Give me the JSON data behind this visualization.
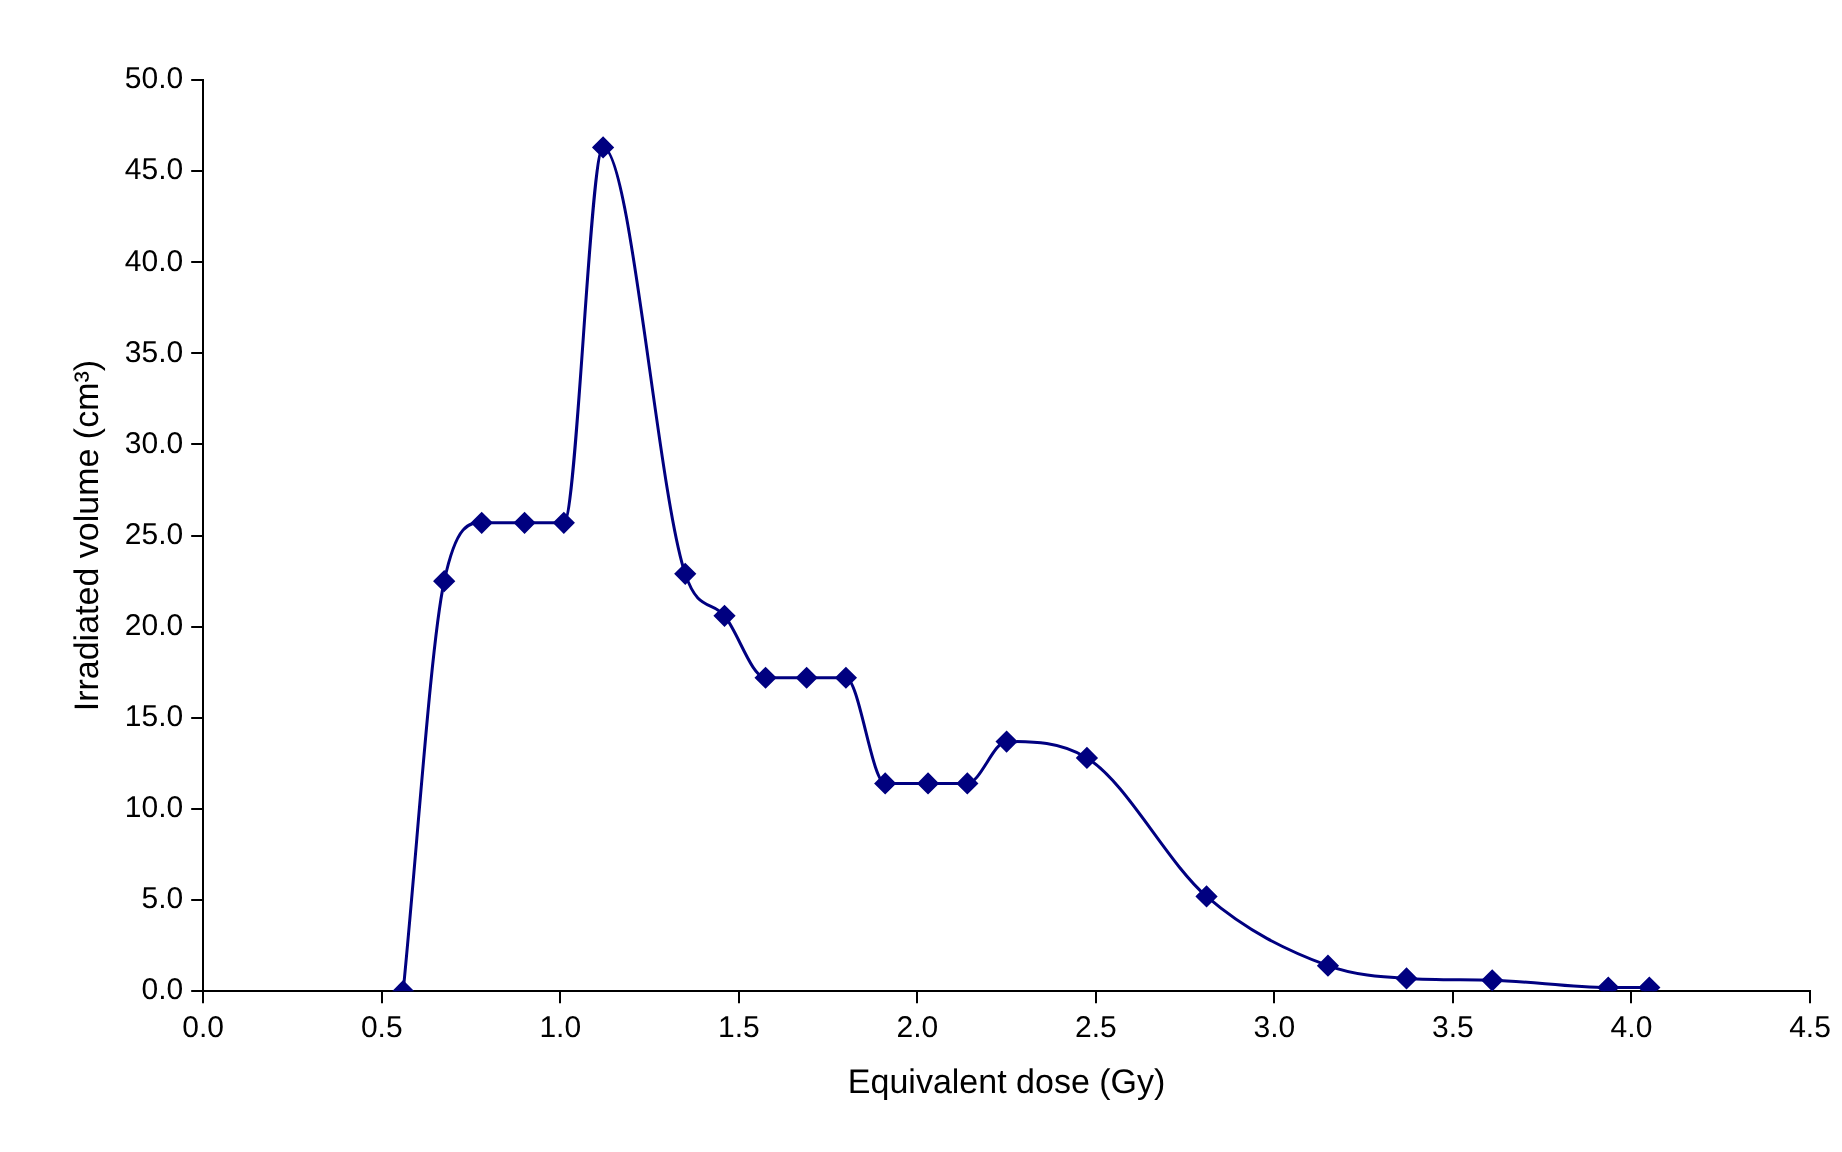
{
  "chart_data": {
    "type": "line",
    "xlabel": "Equivalent dose (Gy)",
    "ylabel": "Irradiated volume (cm³)",
    "x": [
      0.56,
      0.675,
      0.78,
      0.9,
      1.01,
      1.12,
      1.35,
      1.46,
      1.575,
      1.69,
      1.8,
      1.91,
      2.03,
      2.14,
      2.25,
      2.475,
      2.81,
      3.15,
      3.37,
      3.61,
      3.935,
      4.05
    ],
    "series": [
      {
        "color": "#000080",
        "values": [
          0,
          22.5,
          25.7,
          25.7,
          25.7,
          46.3,
          22.9,
          20.6,
          17.2,
          17.2,
          17.2,
          11.4,
          11.4,
          11.4,
          13.7,
          12.8,
          5.2,
          1.4,
          0.7,
          0.6,
          0.2,
          0.2
        ]
      }
    ],
    "xlim": [
      0,
      4.5
    ],
    "xticks": [
      {
        "value": 0,
        "label": "0.0"
      },
      {
        "value": 0.5,
        "label": "0.5"
      },
      {
        "value": 1,
        "label": "1.0"
      },
      {
        "value": 1.5,
        "label": "1.5"
      },
      {
        "value": 2,
        "label": "2.0"
      },
      {
        "value": 2.5,
        "label": "2.5"
      },
      {
        "value": 3,
        "label": "3.0"
      },
      {
        "value": 3.5,
        "label": "3.5"
      },
      {
        "value": 4,
        "label": "4.0"
      },
      {
        "value": 4.5,
        "label": "4.5"
      }
    ],
    "ylim": [
      0,
      50
    ],
    "yticks": [
      {
        "value": 0,
        "label": "0.0"
      },
      {
        "value": 5,
        "label": "5.0"
      },
      {
        "value": 10,
        "label": "10.0"
      },
      {
        "value": 15,
        "label": "15.0"
      },
      {
        "value": 20,
        "label": "20.0"
      },
      {
        "value": 25,
        "label": "25.0"
      },
      {
        "value": 30,
        "label": "30.0"
      },
      {
        "value": 35,
        "label": "35.0"
      },
      {
        "value": 40,
        "label": "40.0"
      },
      {
        "value": 45,
        "label": "45.0"
      },
      {
        "value": 50,
        "label": "50.0"
      }
    ],
    "grid": false,
    "marker": "diamond",
    "line_style": "solid"
  }
}
